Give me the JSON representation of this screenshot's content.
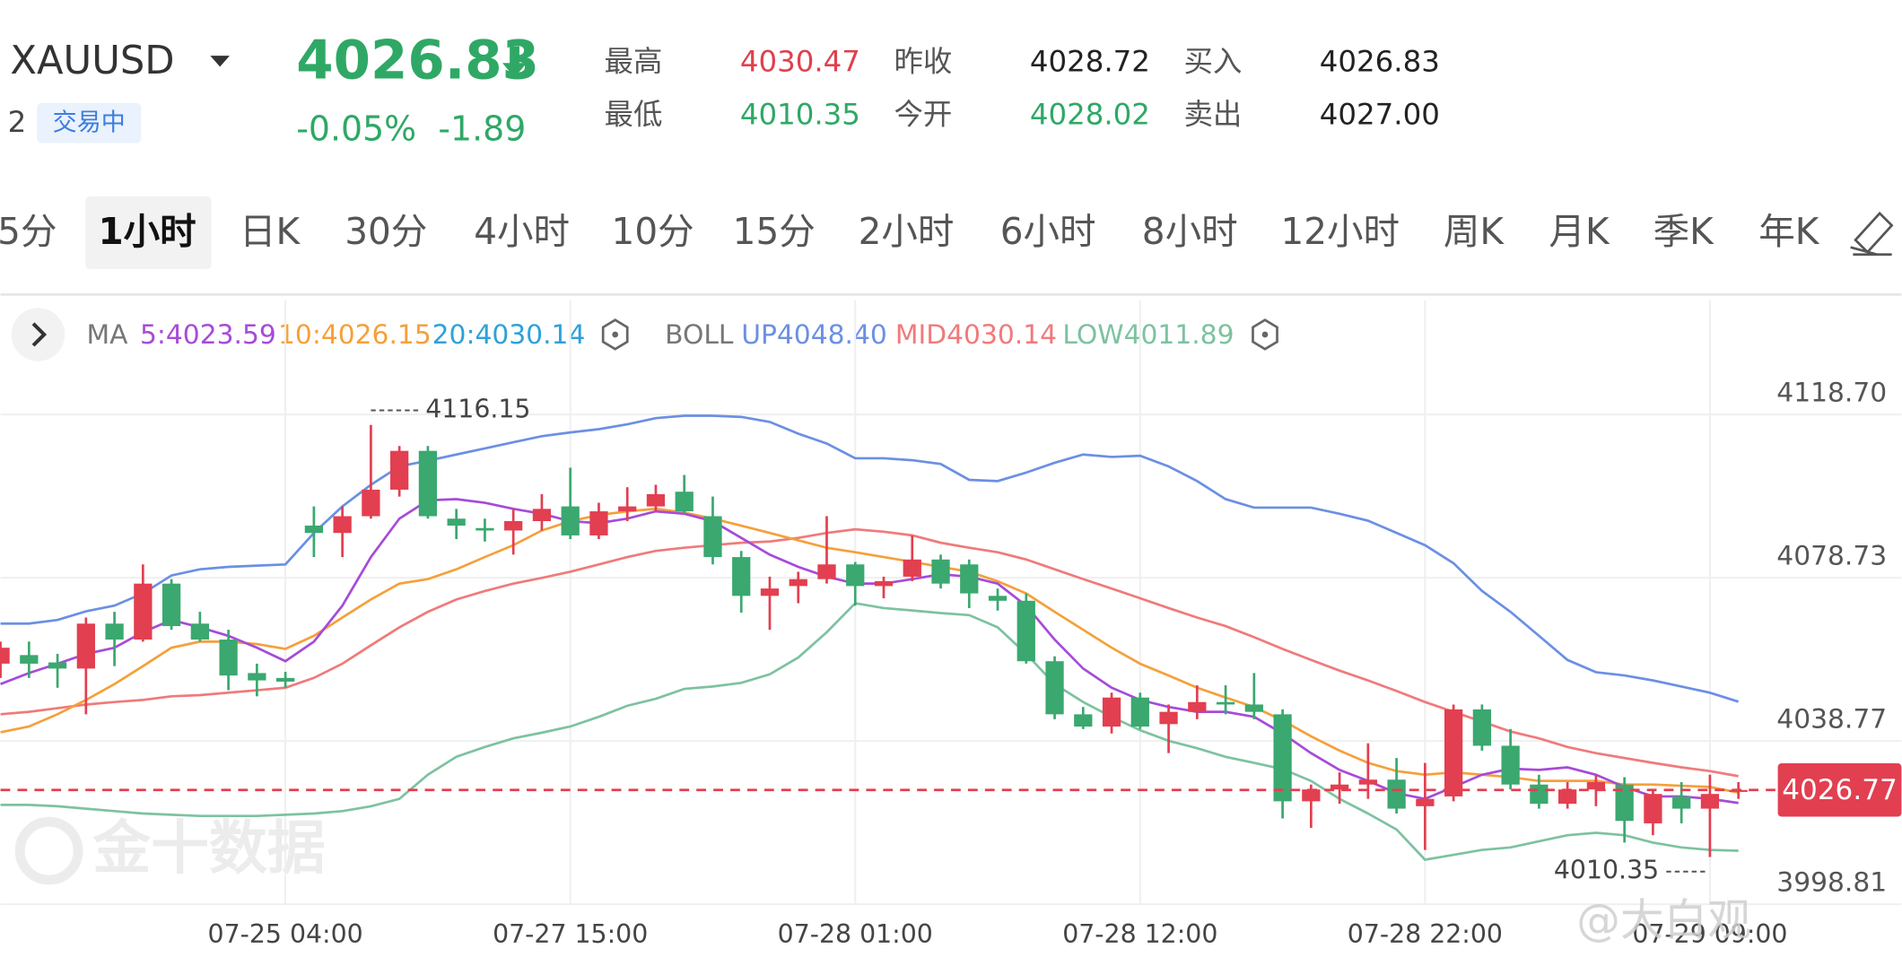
{
  "header": {
    "symbol": "XAUUSD",
    "market_prefix": "2",
    "status": "交易中",
    "price": "4026.83",
    "change_pct": "-0.05%",
    "change": "-1.89",
    "stats": [
      {
        "label": "最高",
        "value": "4030.47",
        "color": "#e0404e"
      },
      {
        "label": "最低",
        "value": "4010.35",
        "color": "#2fa866"
      },
      {
        "label": "昨收",
        "value": "4028.72",
        "color": "#222222"
      },
      {
        "label": "今开",
        "value": "4028.02",
        "color": "#2fa866"
      },
      {
        "label": "买入",
        "value": "4026.83",
        "color": "#222222"
      },
      {
        "label": "卖出",
        "value": "4027.00",
        "color": "#222222"
      }
    ]
  },
  "tabs": {
    "items": [
      "5分",
      "1小时",
      "日K",
      "30分",
      "4小时",
      "10分",
      "15分",
      "2小时",
      "6小时",
      "8小时",
      "12小时",
      "周K",
      "月K",
      "季K",
      "年K"
    ],
    "active": 1
  },
  "chart_data": {
    "type": "candlestick",
    "legend": [
      {
        "name": "MA",
        "items": [
          {
            "text": "5:4023.59",
            "color": "#a64bd8"
          },
          {
            "text": "10:4026.15",
            "color": "#f5a03a"
          },
          {
            "text": "20:4030.14",
            "color": "#2fa1d9"
          }
        ]
      },
      {
        "name": "BOLL",
        "items": [
          {
            "text": "UP4048.40",
            "color": "#6b8fe3"
          },
          {
            "text": "MID4030.14",
            "color": "#f07a7a"
          },
          {
            "text": "LOW4011.89",
            "color": "#7dc2a0"
          }
        ]
      }
    ],
    "up_color": "#e23f50",
    "down_color": "#3aa86f",
    "candles": [
      {
        "open": 4057.7,
        "close": 4061.6,
        "high": 4063.1,
        "low": 4054.2
      },
      {
        "open": 4059.8,
        "close": 4057.7,
        "high": 4063.1,
        "low": 4054.2
      },
      {
        "open": 4058.0,
        "close": 4056.5,
        "high": 4060.1,
        "low": 4051.8
      },
      {
        "open": 4056.5,
        "close": 4067.5,
        "high": 4069.0,
        "low": 4045.3
      },
      {
        "open": 4067.5,
        "close": 4063.6,
        "high": 4070.4,
        "low": 4057.1
      },
      {
        "open": 4063.6,
        "close": 4077.3,
        "high": 4082.0,
        "low": 4063.1
      },
      {
        "open": 4077.3,
        "close": 4066.9,
        "high": 4078.4,
        "low": 4066.0
      },
      {
        "open": 4067.5,
        "close": 4063.6,
        "high": 4070.4,
        "low": 4063.1
      },
      {
        "open": 4063.6,
        "close": 4054.8,
        "high": 4066.0,
        "low": 4051.2
      },
      {
        "open": 4055.4,
        "close": 4053.6,
        "high": 4057.7,
        "low": 4049.7
      },
      {
        "open": 4054.2,
        "close": 4053.3,
        "high": 4055.7,
        "low": 4051.8
      },
      {
        "open": 4091.5,
        "close": 4089.7,
        "high": 4096.2,
        "low": 4083.8
      },
      {
        "open": 4089.7,
        "close": 4093.8,
        "high": 4096.2,
        "low": 4083.8
      },
      {
        "open": 4093.8,
        "close": 4100.3,
        "high": 4116.15,
        "low": 4093.2
      },
      {
        "open": 4100.3,
        "close": 4109.8,
        "high": 4111.0,
        "low": 4098.6
      },
      {
        "open": 4109.8,
        "close": 4093.8,
        "high": 4111.0,
        "low": 4093.2
      },
      {
        "open": 4093.2,
        "close": 4091.5,
        "high": 4095.6,
        "low": 4088.2
      },
      {
        "open": 4090.9,
        "close": 4090.3,
        "high": 4093.2,
        "low": 4087.6
      },
      {
        "open": 4090.3,
        "close": 4092.6,
        "high": 4095.6,
        "low": 4084.4
      },
      {
        "open": 4092.6,
        "close": 4095.6,
        "high": 4099.2,
        "low": 4090.3
      },
      {
        "open": 4096.2,
        "close": 4089.1,
        "high": 4105.7,
        "low": 4088.2
      },
      {
        "open": 4089.1,
        "close": 4095.0,
        "high": 4097.1,
        "low": 4088.2
      },
      {
        "open": 4095.0,
        "close": 4096.2,
        "high": 4100.9,
        "low": 4092.6
      },
      {
        "open": 4096.2,
        "close": 4099.2,
        "high": 4101.5,
        "low": 4095.0
      },
      {
        "open": 4099.8,
        "close": 4095.0,
        "high": 4103.9,
        "low": 4094.4
      },
      {
        "open": 4093.8,
        "close": 4083.8,
        "high": 4098.6,
        "low": 4082.0
      },
      {
        "open": 4083.8,
        "close": 4074.3,
        "high": 4085.3,
        "low": 4070.2
      },
      {
        "open": 4074.3,
        "close": 4076.1,
        "high": 4079.0,
        "low": 4066.0
      },
      {
        "open": 4076.7,
        "close": 4078.4,
        "high": 4080.2,
        "low": 4072.5
      },
      {
        "open": 4078.4,
        "close": 4082.0,
        "high": 4093.8,
        "low": 4077.3
      },
      {
        "open": 4082.0,
        "close": 4076.7,
        "high": 4082.6,
        "low": 4071.9
      },
      {
        "open": 4076.7,
        "close": 4077.9,
        "high": 4079.0,
        "low": 4073.7
      },
      {
        "open": 4079.0,
        "close": 4083.2,
        "high": 4089.1,
        "low": 4077.9
      },
      {
        "open": 4083.2,
        "close": 4077.3,
        "high": 4084.4,
        "low": 4076.1
      },
      {
        "open": 4082.0,
        "close": 4074.9,
        "high": 4083.2,
        "low": 4071.3
      },
      {
        "open": 4074.3,
        "close": 4073.1,
        "high": 4076.1,
        "low": 4070.7
      },
      {
        "open": 4073.1,
        "close": 4058.3,
        "high": 4074.9,
        "low": 4057.7
      },
      {
        "open": 4058.3,
        "close": 4045.3,
        "high": 4059.5,
        "low": 4044.1
      },
      {
        "open": 4045.3,
        "close": 4042.3,
        "high": 4047.1,
        "low": 4041.7
      },
      {
        "open": 4042.3,
        "close": 4049.4,
        "high": 4050.6,
        "low": 4040.6
      },
      {
        "open": 4049.4,
        "close": 4042.3,
        "high": 4050.6,
        "low": 4041.7
      },
      {
        "open": 4042.9,
        "close": 4045.9,
        "high": 4047.7,
        "low": 4035.8
      },
      {
        "open": 4045.9,
        "close": 4048.3,
        "high": 4052.4,
        "low": 4044.1
      },
      {
        "open": 4048.3,
        "close": 4047.7,
        "high": 4052.4,
        "low": 4045.3
      },
      {
        "open": 4047.7,
        "close": 4045.9,
        "high": 4055.4,
        "low": 4044.1
      },
      {
        "open": 4045.3,
        "close": 4024.0,
        "high": 4046.5,
        "low": 4019.8
      },
      {
        "open": 4024.0,
        "close": 4026.9,
        "high": 4028.1,
        "low": 4017.5
      },
      {
        "open": 4026.9,
        "close": 4028.1,
        "high": 4031.1,
        "low": 4023.4
      },
      {
        "open": 4028.1,
        "close": 4029.3,
        "high": 4038.2,
        "low": 4024.6
      },
      {
        "open": 4029.3,
        "close": 4022.2,
        "high": 4034.6,
        "low": 4021.0
      },
      {
        "open": 4022.8,
        "close": 4024.6,
        "high": 4033.4,
        "low": 4012.1
      },
      {
        "open": 4025.2,
        "close": 4046.5,
        "high": 4047.7,
        "low": 4024.0
      },
      {
        "open": 4046.5,
        "close": 4037.6,
        "high": 4047.7,
        "low": 4036.4
      },
      {
        "open": 4037.6,
        "close": 4028.1,
        "high": 4041.7,
        "low": 4026.9
      },
      {
        "open": 4028.1,
        "close": 4023.4,
        "high": 4030.5,
        "low": 4022.2
      },
      {
        "open": 4023.4,
        "close": 4026.9,
        "high": 4028.7,
        "low": 4022.2
      },
      {
        "open": 4026.9,
        "close": 4028.7,
        "high": 4030.5,
        "low": 4022.8
      },
      {
        "open": 4028.1,
        "close": 4019.2,
        "high": 4029.9,
        "low": 4013.9
      },
      {
        "open": 4018.6,
        "close": 4025.8,
        "high": 4026.9,
        "low": 4015.7
      },
      {
        "open": 4025.2,
        "close": 4022.2,
        "high": 4028.7,
        "low": 4018.6
      },
      {
        "open": 4022.2,
        "close": 4025.8,
        "high": 4030.5,
        "low": 4010.35
      },
      {
        "open": 4026.3,
        "close": 4026.77,
        "high": 4028.7,
        "low": 4024.6
      }
    ],
    "lines": [
      {
        "color": "#6b8fe3",
        "values": [
          4067.5,
          4067.5,
          4068.4,
          4070.5,
          4071.9,
          4074.9,
          4079.3,
          4080.8,
          4081.4,
          4081.7,
          4082.0,
          4089.7,
          4096.2,
          4101.5,
          4106.0,
          4107.4,
          4108.9,
          4110.4,
          4111.9,
          4113.4,
          4114.3,
          4115.1,
          4116.3,
          4117.8,
          4118.4,
          4118.4,
          4118.1,
          4116.9,
          4114.0,
          4111.6,
          4108.0,
          4108.0,
          4107.5,
          4106.6,
          4102.7,
          4102.4,
          4104.5,
          4106.9,
          4108.9,
          4108.3,
          4108.6,
          4106.0,
          4102.4,
          4098.0,
          4095.9,
          4095.9,
          4095.9,
          4094.4,
          4092.7,
          4089.7,
          4086.7,
          4082.3,
          4075.5,
          4070.4,
          4064.5,
          4058.6,
          4055.6,
          4054.8,
          4053.6,
          4052.1,
          4050.6,
          4048.4
        ]
      },
      {
        "color": "#7dc2a0",
        "values": [
          4023.1,
          4023.1,
          4022.8,
          4022.2,
          4021.6,
          4021.0,
          4020.7,
          4020.4,
          4020.4,
          4020.4,
          4020.7,
          4021.0,
          4021.6,
          4022.8,
          4024.6,
          4030.5,
          4034.9,
          4037.3,
          4039.4,
          4040.8,
          4042.3,
          4044.7,
          4047.4,
          4049.1,
          4051.5,
          4052.1,
          4053.0,
          4055.1,
          4059.2,
          4065.4,
          4072.5,
          4071.3,
          4070.7,
          4070.1,
          4069.6,
          4066.6,
          4060.1,
          4052.7,
          4048.3,
          4044.7,
          4041.4,
          4038.8,
          4037.0,
          4034.9,
          4033.4,
          4031.9,
          4029.0,
          4024.6,
          4021.0,
          4017.1,
          4009.7,
          4010.9,
          4012.1,
          4012.7,
          4014.2,
          4015.7,
          4016.3,
          4015.7,
          4013.9,
          4012.7,
          4012.1,
          4011.89
        ]
      },
      {
        "color": "#f07a7a",
        "values": [
          4045.3,
          4045.9,
          4046.8,
          4047.7,
          4048.3,
          4048.8,
          4049.7,
          4050.0,
          4050.6,
          4051.2,
          4051.8,
          4054.2,
          4057.7,
          4062.2,
          4066.6,
          4070.4,
          4073.4,
          4075.5,
          4077.3,
          4078.7,
          4080.2,
          4082.0,
          4083.8,
          4085.3,
          4086.1,
          4086.7,
          4087.3,
          4087.6,
          4088.5,
          4089.7,
          4090.6,
          4090.0,
          4089.1,
          4087.3,
          4086.1,
          4085.0,
          4083.2,
          4080.8,
          4078.4,
          4076.1,
          4073.7,
          4071.3,
          4069.0,
          4066.9,
          4064.2,
          4061.3,
          4058.6,
          4056.0,
          4053.6,
          4051.0,
          4048.3,
          4045.9,
          4043.5,
          4041.1,
          4039.4,
          4037.3,
          4035.8,
          4034.6,
          4033.4,
          4032.3,
          4031.4,
          4030.14
        ]
      },
      {
        "color": "#f5a03a",
        "values": [
          4040.9,
          4042.3,
          4045.3,
          4048.8,
          4052.7,
          4057.1,
          4061.6,
          4063.1,
          4063.1,
          4062.5,
          4061.3,
          4064.5,
          4069.0,
          4073.4,
          4077.3,
          4078.4,
          4080.8,
          4083.8,
          4086.7,
          4090.3,
          4092.6,
          4094.1,
          4095.0,
          4095.6,
          4094.7,
          4093.2,
          4091.5,
          4089.7,
          4087.9,
          4086.1,
          4085.0,
          4083.8,
          4082.6,
          4081.4,
          4080.2,
          4077.9,
          4074.9,
          4070.4,
          4066.0,
          4061.6,
          4057.7,
          4054.8,
          4051.8,
          4049.4,
          4047.1,
          4043.8,
          4039.9,
          4036.4,
          4033.4,
          4031.4,
          4030.5,
          4031.1,
          4030.5,
          4029.9,
          4029.0,
          4029.0,
          4029.0,
          4028.1,
          4028.1,
          4027.8,
          4027.5,
          4026.15
        ]
      },
      {
        "color": "#a64bd8",
        "values": [
          4052.7,
          4055.4,
          4057.7,
          4060.1,
          4061.6,
          4065.4,
          4068.4,
          4066.6,
          4064.5,
          4061.6,
          4058.3,
          4063.1,
          4071.9,
          4083.8,
          4093.2,
          4097.7,
          4098.0,
          4097.1,
          4095.6,
          4094.4,
          4092.6,
          4092.1,
          4093.2,
          4095.0,
          4094.4,
          4092.6,
          4088.5,
          4084.4,
          4081.4,
          4079.0,
          4077.3,
          4077.3,
          4078.4,
          4079.6,
          4079.0,
          4077.3,
          4071.9,
          4063.6,
          4056.5,
          4051.8,
          4048.8,
          4047.1,
          4045.9,
          4045.9,
          4044.7,
          4040.6,
          4035.8,
          4031.7,
          4029.0,
          4026.0,
          4024.6,
          4027.5,
          4030.5,
          4032.0,
          4031.7,
          4032.3,
          4030.5,
          4027.5,
          4025.2,
          4025.2,
          4024.6,
          4023.59
        ]
      }
    ],
    "ylim": [
      3998.81,
      4118.7
    ],
    "yticks": [
      {
        "value": 4118.7,
        "label": "4118.70"
      },
      {
        "value": 4078.73,
        "label": "4078.73"
      },
      {
        "value": 4038.77,
        "label": "4038.77"
      },
      3998.81
    ],
    "x_labels": [
      "07-25 04:00",
      "07-27 15:00",
      "07-28 01:00",
      "07-28 12:00",
      "07-28 22:00",
      "07-29 09:00"
    ],
    "grid": true,
    "watermark": "金十数据"
  },
  "credit": "@大白观"
}
